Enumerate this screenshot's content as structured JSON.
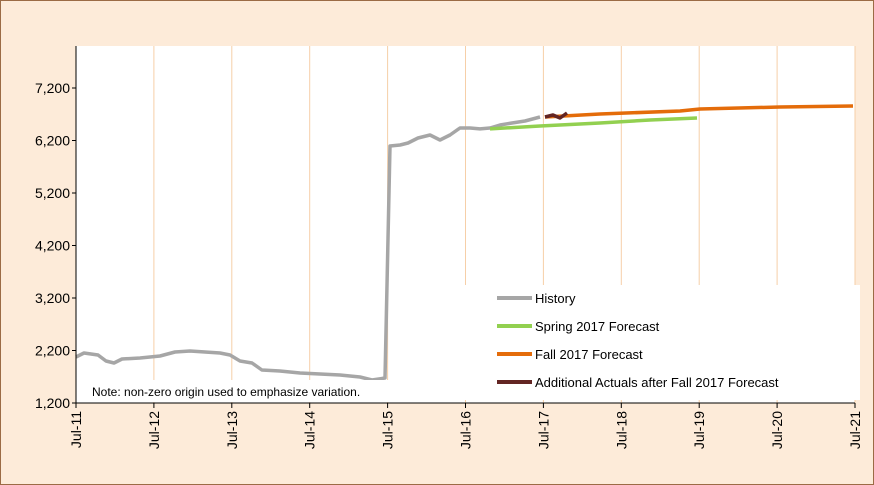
{
  "chart_data": {
    "type": "line",
    "annotation": "Note: non-zero origin used to emphasize variation.",
    "xlim": [
      2011.5,
      2021.5
    ],
    "xticks": [
      {
        "value": 2011.5,
        "label": "Jul-11"
      },
      {
        "value": 2012.5,
        "label": "Jul-12"
      },
      {
        "value": 2013.5,
        "label": "Jul-13"
      },
      {
        "value": 2014.5,
        "label": "Jul-14"
      },
      {
        "value": 2015.5,
        "label": "Jul-15"
      },
      {
        "value": 2016.5,
        "label": "Jul-16"
      },
      {
        "value": 2017.5,
        "label": "Jul-17"
      },
      {
        "value": 2018.5,
        "label": "Jul-18"
      },
      {
        "value": 2019.5,
        "label": "Jul-19"
      },
      {
        "value": 2020.5,
        "label": "Jul-20"
      },
      {
        "value": 2021.5,
        "label": "Jul-21"
      }
    ],
    "ylim": [
      1200,
      8000
    ],
    "yticks": [
      {
        "value": 1200,
        "label": "1,200"
      },
      {
        "value": 2200,
        "label": "2,200"
      },
      {
        "value": 3200,
        "label": "3,200"
      },
      {
        "value": 4200,
        "label": "4,200"
      },
      {
        "value": 5200,
        "label": "5,200"
      },
      {
        "value": 6200,
        "label": "6,200"
      },
      {
        "value": 7200,
        "label": "7,200"
      }
    ],
    "grid": "x",
    "legend": "lower right",
    "series": [
      {
        "name": "History",
        "color": "#a6a6a6",
        "x": [
          2011.5,
          2011.603,
          2011.782,
          2011.885,
          2011.988,
          2012.091,
          2012.322,
          2012.578,
          2012.771,
          2012.963,
          2013.156,
          2013.349,
          2013.477,
          2013.605,
          2013.759,
          2013.887,
          2014.118,
          2014.375,
          2014.632,
          2014.889,
          2015.146,
          2015.3,
          2015.467,
          2015.531,
          2015.66,
          2015.762,
          2015.89,
          2016.044,
          2016.173,
          2016.301,
          2016.429,
          2016.558,
          2016.686,
          2016.815,
          2016.943,
          2017.097,
          2017.264,
          2017.456
        ],
        "values": [
          2076,
          2152,
          2114,
          2000,
          1962,
          2038,
          2057,
          2095,
          2172,
          2190,
          2172,
          2152,
          2114,
          2000,
          1962,
          1829,
          1810,
          1771,
          1752,
          1733,
          1695,
          1638,
          1676,
          6096,
          6115,
          6153,
          6248,
          6305,
          6210,
          6305,
          6439,
          6439,
          6420,
          6439,
          6496,
          6534,
          6572,
          6648
        ]
      },
      {
        "name": "Spring 2017 Forecast",
        "color": "#92d050",
        "x": [
          2016.815,
          2017.456,
          2018.226,
          2018.868,
          2019.472
        ],
        "values": [
          6420,
          6477,
          6534,
          6591,
          6629
        ]
      },
      {
        "name": "Fall 2017 Forecast",
        "color": "#e46c0a",
        "x": [
          2017.52,
          2018.226,
          2019.254,
          2019.51,
          2020.537,
          2021.474
        ],
        "values": [
          6648,
          6705,
          6762,
          6800,
          6838,
          6857
        ]
      },
      {
        "name": "Additional Actuals after Fall 2017 Forecast",
        "color": "#632523",
        "x": [
          2017.52,
          2017.623,
          2017.713,
          2017.803
        ],
        "values": [
          6648,
          6686,
          6629,
          6724
        ]
      }
    ]
  }
}
